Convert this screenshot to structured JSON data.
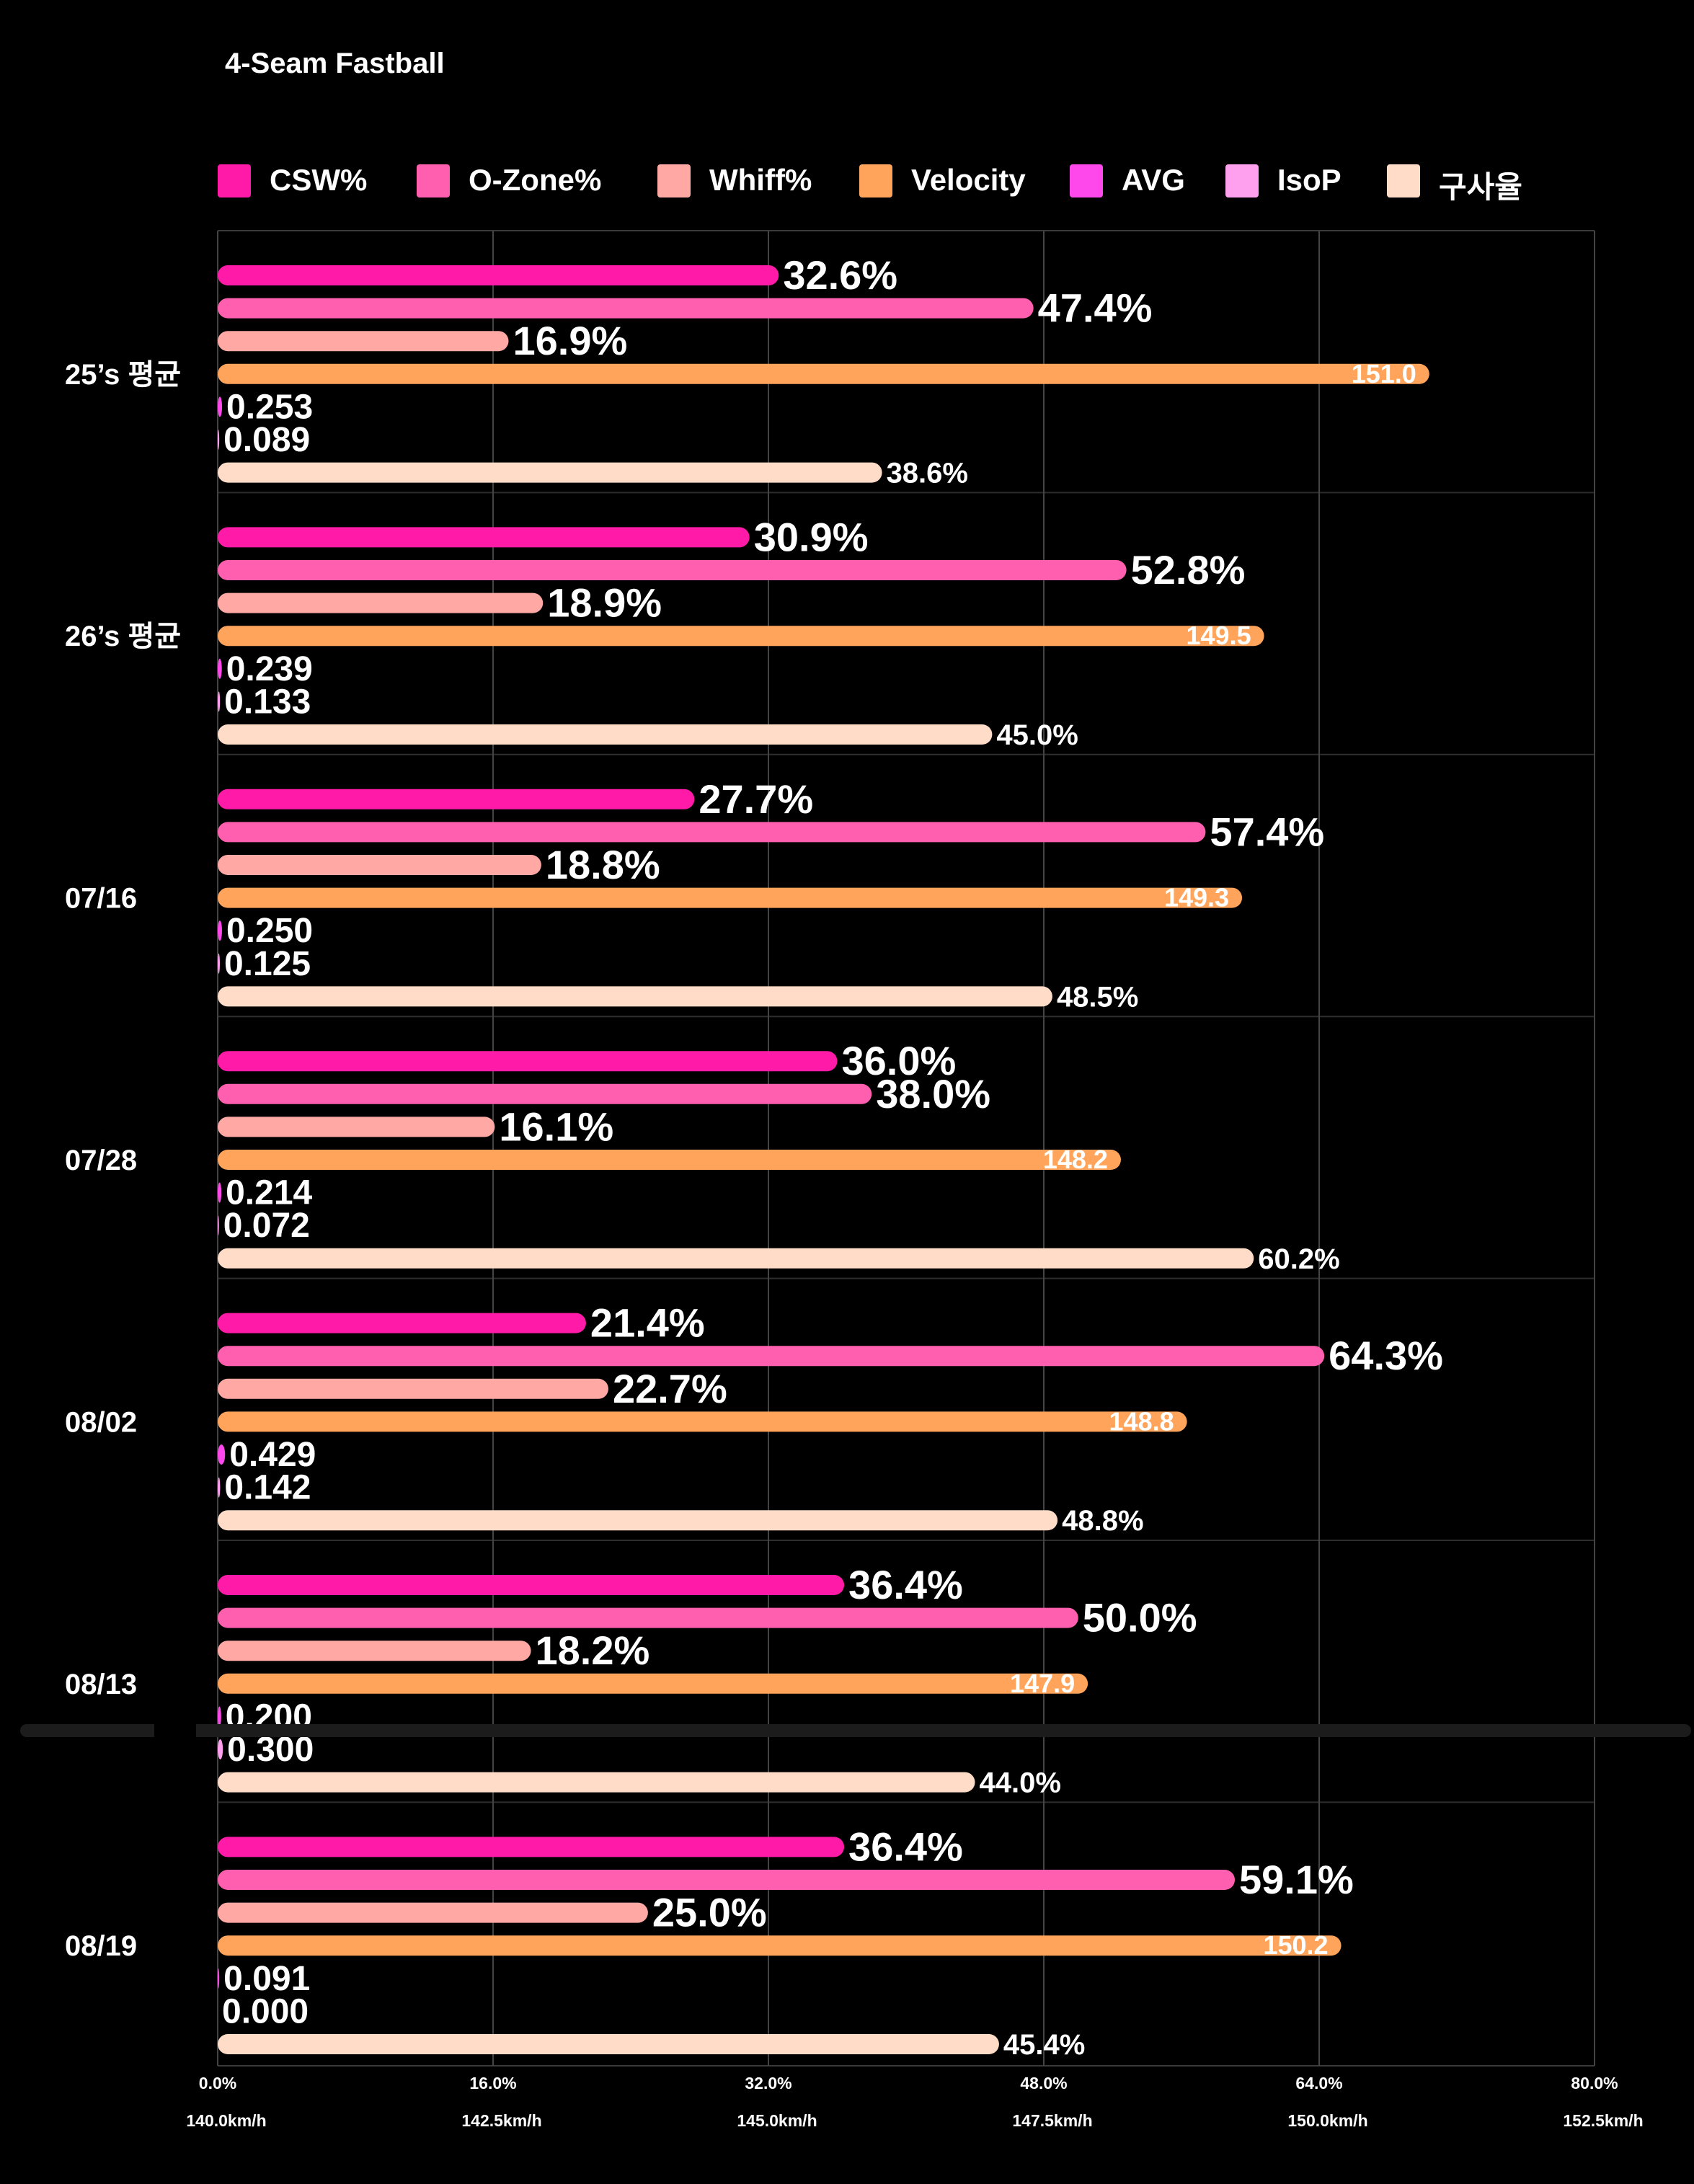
{
  "chart_data": {
    "type": "bar",
    "orientation": "horizontal",
    "title": "4-Seam Fastball",
    "categories": [
      "25’s 평균",
      "26’s 평균",
      "07/16",
      "07/28",
      "08/02",
      "08/13",
      "08/19"
    ],
    "series": [
      {
        "name": "CSW%",
        "color": "#ff1aa8",
        "axis": "percent",
        "values": [
          32.6,
          30.9,
          27.7,
          36.0,
          21.4,
          36.4,
          36.4
        ],
        "labels": [
          "32.6%",
          "30.9%",
          "27.7%",
          "36.0%",
          "21.4%",
          "36.4%",
          "36.4%"
        ]
      },
      {
        "name": "O-Zone%",
        "color": "#ff5fae",
        "axis": "percent",
        "values": [
          47.4,
          52.8,
          57.4,
          38.0,
          64.3,
          50.0,
          59.1
        ],
        "labels": [
          "47.4%",
          "52.8%",
          "57.4%",
          "38.0%",
          "64.3%",
          "50.0%",
          "59.1%"
        ]
      },
      {
        "name": "Whiff%",
        "color": "#ffa8a4",
        "axis": "percent",
        "values": [
          16.9,
          18.9,
          18.8,
          16.1,
          22.7,
          18.2,
          25.0
        ],
        "labels": [
          "16.9%",
          "18.9%",
          "18.8%",
          "16.1%",
          "22.7%",
          "18.2%",
          "25.0%"
        ]
      },
      {
        "name": "Velocity",
        "color": "#ffa45a",
        "axis": "velocity",
        "values": [
          151.0,
          149.5,
          149.3,
          148.2,
          148.8,
          147.9,
          150.2
        ],
        "labels": [
          "151.0",
          "149.5",
          "149.3",
          "148.2",
          "148.8",
          "147.9",
          "150.2"
        ]
      },
      {
        "name": "AVG",
        "color": "#ff48ec",
        "axis": "percent",
        "values": [
          0.253,
          0.239,
          0.25,
          0.214,
          0.429,
          0.2,
          0.091
        ],
        "labels": [
          "0.253",
          "0.239",
          "0.250",
          "0.214",
          "0.429",
          "0.200",
          "0.091"
        ]
      },
      {
        "name": "IsoP",
        "color": "#ffa0ee",
        "axis": "percent",
        "values": [
          0.089,
          0.133,
          0.125,
          0.072,
          0.142,
          0.3,
          0.0
        ],
        "labels": [
          "0.089",
          "0.133",
          "0.125",
          "0.072",
          "0.142",
          "0.300",
          "0.000"
        ]
      },
      {
        "name": "구사율",
        "color": "#ffdcc8",
        "axis": "percent",
        "values": [
          38.6,
          45.0,
          48.5,
          60.2,
          48.8,
          44.0,
          45.4
        ],
        "labels": [
          "38.6%",
          "45.0%",
          "48.5%",
          "60.2%",
          "48.8%",
          "44.0%",
          "45.4%"
        ]
      }
    ],
    "x_axis_percent": {
      "range": [
        0,
        80
      ],
      "ticks": [
        "0.0%",
        "16.0%",
        "32.0%",
        "48.0%",
        "64.0%",
        "80.0%"
      ]
    },
    "x_axis_velocity": {
      "range": [
        140.0,
        152.5
      ],
      "ticks": [
        "140.0km/h",
        "142.5km/h",
        "145.0km/h",
        "147.5km/h",
        "150.0km/h",
        "152.5km/h"
      ]
    },
    "legend_position": "top",
    "grid": true
  }
}
